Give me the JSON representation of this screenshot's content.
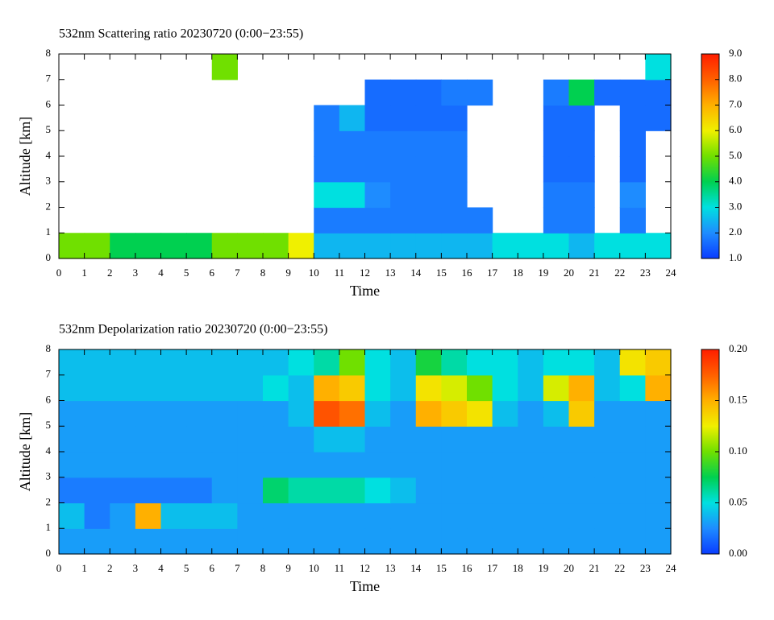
{
  "chart_data": [
    {
      "type": "heatmap",
      "title": "532nm Scattering ratio  20230720 (0:00−23:55)",
      "xlabel": "Time",
      "ylabel": "Altitude [km]",
      "xlim": [
        0,
        24
      ],
      "xticks": [
        0,
        1,
        2,
        3,
        4,
        5,
        6,
        7,
        8,
        9,
        10,
        11,
        12,
        13,
        14,
        15,
        16,
        17,
        18,
        19,
        20,
        21,
        22,
        23,
        24
      ],
      "ylim": [
        0,
        8
      ],
      "yticks": [
        0,
        1,
        2,
        3,
        4,
        5,
        6,
        7,
        8
      ],
      "clim": [
        1,
        9
      ],
      "cticks": [
        {
          "value": 1,
          "label": "1.0"
        },
        {
          "value": 2,
          "label": "2.0"
        },
        {
          "value": 3,
          "label": "3.0"
        },
        {
          "value": 4,
          "label": "4.0"
        },
        {
          "value": 5,
          "label": "5.0"
        },
        {
          "value": 6,
          "label": "6.0"
        },
        {
          "value": 7,
          "label": "7.0"
        },
        {
          "value": 8,
          "label": "8.0"
        },
        {
          "value": 9,
          "label": "9.0"
        }
      ],
      "colorscale": [
        "#0a3cff",
        "#1e8cff",
        "#00e0e0",
        "#00d050",
        "#70e000",
        "#f0f000",
        "#ffb000",
        "#ff6000",
        "#ff1e00"
      ],
      "z": [
        [
          5,
          5,
          4,
          4,
          4,
          4,
          5,
          5,
          5,
          6,
          2.5,
          2.5,
          2.5,
          2.5,
          2.5,
          2.5,
          2.5,
          3,
          3,
          3,
          2.5,
          3,
          3,
          3
        ],
        [
          null,
          null,
          null,
          null,
          null,
          null,
          null,
          null,
          null,
          null,
          1.8,
          1.8,
          1.8,
          1.8,
          1.8,
          1.8,
          1.8,
          null,
          null,
          1.8,
          1.8,
          null,
          1.8,
          null
        ],
        [
          null,
          null,
          null,
          null,
          null,
          null,
          null,
          null,
          null,
          null,
          3,
          3,
          2,
          1.8,
          1.8,
          1.8,
          null,
          null,
          null,
          1.8,
          1.8,
          null,
          2,
          null
        ],
        [
          null,
          null,
          null,
          null,
          null,
          null,
          null,
          null,
          null,
          null,
          1.8,
          1.8,
          1.8,
          1.8,
          1.8,
          1.8,
          null,
          null,
          null,
          1.6,
          1.6,
          null,
          1.6,
          null
        ],
        [
          null,
          null,
          null,
          null,
          null,
          null,
          null,
          null,
          null,
          null,
          1.8,
          1.8,
          1.8,
          1.8,
          1.8,
          1.8,
          null,
          null,
          null,
          1.6,
          1.6,
          null,
          1.6,
          null
        ],
        [
          null,
          null,
          null,
          null,
          null,
          null,
          null,
          null,
          null,
          null,
          1.8,
          2.5,
          1.6,
          1.6,
          1.6,
          1.6,
          null,
          null,
          null,
          1.6,
          1.6,
          null,
          1.6,
          1.6
        ],
        [
          null,
          null,
          null,
          null,
          null,
          null,
          null,
          null,
          null,
          null,
          null,
          null,
          1.6,
          1.6,
          1.6,
          1.8,
          1.8,
          null,
          null,
          1.8,
          4,
          1.6,
          1.6,
          1.6
        ],
        [
          null,
          null,
          null,
          null,
          null,
          null,
          5,
          null,
          null,
          null,
          null,
          null,
          null,
          null,
          null,
          null,
          null,
          null,
          null,
          null,
          null,
          null,
          null,
          3
        ]
      ]
    },
    {
      "type": "heatmap",
      "title": "532nm Depolarization ratio  20230720 (0:00−23:55)",
      "xlabel": "Time",
      "ylabel": "Altitude [km]",
      "xlim": [
        0,
        24
      ],
      "xticks": [
        0,
        1,
        2,
        3,
        4,
        5,
        6,
        7,
        8,
        9,
        10,
        11,
        12,
        13,
        14,
        15,
        16,
        17,
        18,
        19,
        20,
        21,
        22,
        23,
        24
      ],
      "ylim": [
        0,
        8
      ],
      "yticks": [
        0,
        1,
        2,
        3,
        4,
        5,
        6,
        7,
        8
      ],
      "clim": [
        0,
        0.2
      ],
      "cticks": [
        {
          "value": 0,
          "label": "0.00"
        },
        0.05,
        {
          "value": 0.1,
          "label": "0.10"
        },
        0.15,
        {
          "value": 0.2,
          "label": "0.20"
        }
      ],
      "colorscale": [
        "#0a3cff",
        "#1e8cff",
        "#00e0e0",
        "#00d050",
        "#70e000",
        "#f0f000",
        "#ffb000",
        "#ff6000",
        "#ff1e00"
      ],
      "z": [
        [
          0.03,
          0.03,
          0.03,
          0.03,
          0.03,
          0.03,
          0.03,
          0.03,
          0.03,
          0.03,
          0.03,
          0.03,
          0.03,
          0.03,
          0.03,
          0.03,
          0.03,
          0.03,
          0.03,
          0.03,
          0.03,
          0.03,
          0.03,
          0.03
        ],
        [
          0.04,
          0.02,
          0.03,
          0.15,
          0.04,
          0.04,
          0.04,
          0.03,
          0.03,
          0.03,
          0.03,
          0.03,
          0.03,
          0.03,
          0.03,
          0.03,
          0.03,
          0.03,
          0.03,
          0.03,
          0.03,
          0.03,
          0.03,
          0.03
        ],
        [
          0.02,
          0.02,
          0.02,
          0.02,
          0.02,
          0.02,
          0.03,
          0.03,
          0.07,
          0.06,
          0.06,
          0.06,
          0.05,
          0.04,
          0.03,
          0.03,
          0.03,
          0.03,
          0.03,
          0.03,
          0.03,
          0.03,
          0.03,
          0.03
        ],
        [
          0.03,
          0.03,
          0.03,
          0.03,
          0.03,
          0.03,
          0.03,
          0.03,
          0.03,
          0.03,
          0.03,
          0.03,
          0.03,
          0.03,
          0.03,
          0.03,
          0.03,
          0.03,
          0.03,
          0.03,
          0.03,
          0.03,
          0.03,
          0.03
        ],
        [
          0.03,
          0.03,
          0.03,
          0.03,
          0.03,
          0.03,
          0.03,
          0.03,
          0.03,
          0.03,
          0.04,
          0.04,
          0.03,
          0.03,
          0.03,
          0.03,
          0.03,
          0.03,
          0.03,
          0.03,
          0.03,
          0.03,
          0.03,
          0.03
        ],
        [
          0.03,
          0.03,
          0.03,
          0.03,
          0.03,
          0.03,
          0.03,
          0.03,
          0.03,
          0.04,
          0.18,
          0.17,
          0.04,
          0.03,
          0.15,
          0.14,
          0.13,
          0.04,
          0.03,
          0.04,
          0.14,
          0.03,
          0.03,
          0.03
        ],
        [
          0.04,
          0.04,
          0.04,
          0.04,
          0.04,
          0.04,
          0.04,
          0.04,
          0.05,
          0.04,
          0.15,
          0.14,
          0.05,
          0.04,
          0.13,
          0.12,
          0.1,
          0.05,
          0.04,
          0.12,
          0.15,
          0.04,
          0.05,
          0.15
        ],
        [
          0.04,
          0.04,
          0.04,
          0.04,
          0.04,
          0.04,
          0.04,
          0.04,
          0.04,
          0.05,
          0.06,
          0.1,
          0.05,
          0.04,
          0.08,
          0.06,
          0.05,
          0.05,
          0.04,
          0.05,
          0.05,
          0.04,
          0.13,
          0.14
        ]
      ]
    }
  ]
}
